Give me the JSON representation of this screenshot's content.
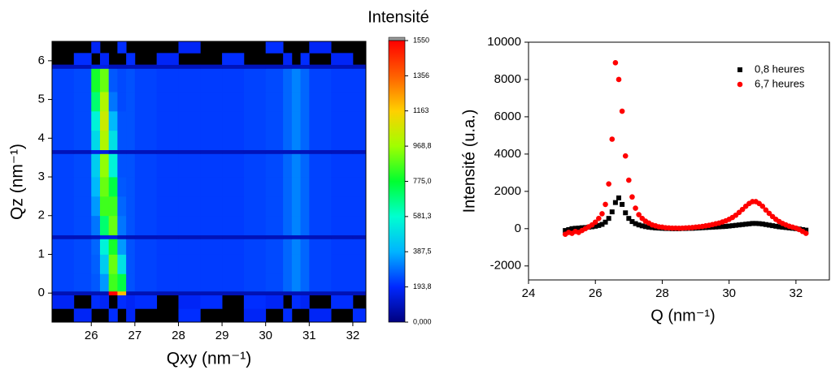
{
  "chart_data": [
    {
      "type": "heatmap",
      "xlabel": "Qxy (nm⁻¹)",
      "ylabel": "Qz (nm⁻¹)",
      "colorbar_title": "Intensité",
      "xlim": [
        25.1,
        32.3
      ],
      "ylim": [
        -0.75,
        6.5
      ],
      "xticks": [
        26,
        27,
        28,
        29,
        30,
        31,
        32
      ],
      "yticks": [
        0,
        1,
        2,
        3,
        4,
        5,
        6
      ],
      "clim": [
        0,
        1550
      ],
      "cticks": [
        {
          "value": 0,
          "label": "0,000"
        },
        {
          "value": 193.8,
          "label": "193,8"
        },
        {
          "value": 387.5,
          "label": "387,5"
        },
        {
          "value": 581.3,
          "label": "581,3"
        },
        {
          "value": 775.0,
          "label": "775,0"
        },
        {
          "value": 968.8,
          "label": "968,8"
        },
        1163,
        1356,
        1550
      ],
      "colorscale": [
        "#00007f",
        "#0028ff",
        "#00b4ff",
        "#00ffd0",
        "#00ff30",
        "#a0ff00",
        "#ffd000",
        "#ff6000",
        "#ff0000"
      ],
      "x_edges": [
        25.1,
        25.6,
        26.0,
        26.2,
        26.4,
        26.6,
        26.8,
        27.0,
        27.5,
        28.0,
        28.5,
        29.0,
        29.5,
        30.0,
        30.4,
        30.6,
        30.8,
        31.0,
        31.5,
        32.0,
        32.3
      ],
      "y_edges": [
        -0.75,
        -0.4,
        -0.05,
        0.05,
        0.5,
        1.0,
        1.4,
        1.5,
        2.0,
        2.5,
        3.0,
        3.6,
        3.7,
        4.2,
        4.7,
        5.2,
        5.8,
        5.9,
        6.2,
        6.5
      ],
      "z": [
        [
          null,
          180,
          null,
          null,
          200,
          null,
          180,
          null,
          null,
          200,
          null,
          null,
          180,
          null,
          200,
          null,
          null,
          180,
          null,
          200
        ],
        [
          180,
          null,
          200,
          180,
          null,
          200,
          180,
          200,
          null,
          180,
          200,
          null,
          200,
          180,
          null,
          200,
          180,
          null,
          200,
          null
        ],
        [
          80,
          80,
          80,
          80,
          1550,
          1200,
          80,
          80,
          80,
          80,
          80,
          80,
          80,
          80,
          80,
          80,
          80,
          80,
          80,
          80
        ],
        [
          230,
          240,
          260,
          350,
          850,
          750,
          250,
          230,
          220,
          220,
          220,
          220,
          230,
          240,
          280,
          320,
          280,
          230,
          220,
          220
        ],
        [
          230,
          240,
          270,
          450,
          900,
          500,
          250,
          230,
          220,
          220,
          220,
          220,
          230,
          240,
          280,
          320,
          280,
          230,
          220,
          220
        ],
        [
          230,
          240,
          280,
          550,
          800,
          350,
          250,
          230,
          220,
          220,
          220,
          220,
          230,
          240,
          280,
          320,
          280,
          230,
          220,
          220
        ],
        [
          90,
          90,
          100,
          150,
          150,
          100,
          90,
          90,
          90,
          90,
          90,
          90,
          90,
          90,
          90,
          90,
          90,
          90,
          90,
          90
        ],
        [
          230,
          240,
          300,
          700,
          900,
          300,
          250,
          230,
          220,
          220,
          220,
          220,
          230,
          240,
          280,
          320,
          280,
          230,
          220,
          220
        ],
        [
          230,
          240,
          350,
          850,
          850,
          280,
          250,
          230,
          220,
          220,
          220,
          220,
          230,
          240,
          280,
          320,
          280,
          230,
          220,
          220
        ],
        [
          230,
          240,
          400,
          900,
          750,
          260,
          250,
          230,
          220,
          220,
          220,
          220,
          230,
          240,
          280,
          320,
          280,
          230,
          220,
          220
        ],
        [
          230,
          240,
          450,
          950,
          550,
          250,
          250,
          230,
          220,
          220,
          220,
          220,
          230,
          240,
          280,
          320,
          280,
          230,
          220,
          220
        ],
        [
          90,
          90,
          150,
          150,
          100,
          90,
          90,
          90,
          90,
          90,
          90,
          90,
          90,
          90,
          90,
          90,
          90,
          90,
          90,
          90
        ],
        [
          230,
          240,
          480,
          1000,
          500,
          250,
          250,
          230,
          220,
          220,
          220,
          220,
          230,
          240,
          280,
          320,
          280,
          230,
          220,
          220
        ],
        [
          230,
          240,
          550,
          1050,
          400,
          250,
          250,
          230,
          220,
          220,
          220,
          220,
          230,
          240,
          280,
          320,
          280,
          230,
          220,
          220
        ],
        [
          230,
          240,
          700,
          1000,
          300,
          240,
          250,
          230,
          220,
          220,
          220,
          220,
          230,
          240,
          280,
          320,
          280,
          230,
          220,
          220
        ],
        [
          230,
          240,
          800,
          900,
          260,
          240,
          250,
          230,
          220,
          220,
          220,
          220,
          230,
          240,
          280,
          320,
          280,
          230,
          220,
          220
        ],
        [
          90,
          90,
          150,
          150,
          90,
          90,
          90,
          90,
          90,
          90,
          90,
          90,
          90,
          90,
          90,
          90,
          90,
          90,
          90,
          90
        ],
        [
          null,
          200,
          null,
          180,
          null,
          null,
          200,
          null,
          180,
          null,
          null,
          200,
          null,
          null,
          180,
          null,
          200,
          null,
          180,
          null
        ],
        [
          null,
          null,
          180,
          null,
          null,
          200,
          null,
          null,
          null,
          180,
          null,
          null,
          null,
          200,
          null,
          null,
          null,
          180,
          null,
          null
        ]
      ]
    },
    {
      "type": "scatter",
      "xlabel": "Q (nm⁻¹)",
      "ylabel": "Intensité (u.a.)",
      "xlim": [
        24,
        33
      ],
      "ylim": [
        -2750,
        10000
      ],
      "xticks": [
        24,
        26,
        28,
        30,
        32
      ],
      "yticks": [
        -2000,
        0,
        2000,
        4000,
        6000,
        8000,
        10000
      ],
      "legend": "upper right",
      "x": [
        25.1,
        25.2,
        25.3,
        25.4,
        25.5,
        25.6,
        25.7,
        25.8,
        25.9,
        26.0,
        26.1,
        26.2,
        26.3,
        26.4,
        26.5,
        26.6,
        26.7,
        26.8,
        26.9,
        27.0,
        27.1,
        27.2,
        27.3,
        27.4,
        27.5,
        27.6,
        27.7,
        27.8,
        27.9,
        28.0,
        28.1,
        28.2,
        28.3,
        28.4,
        28.5,
        28.6,
        28.7,
        28.8,
        28.9,
        29.0,
        29.1,
        29.2,
        29.3,
        29.4,
        29.5,
        29.6,
        29.7,
        29.8,
        29.9,
        30.0,
        30.1,
        30.2,
        30.3,
        30.4,
        30.5,
        30.6,
        30.7,
        30.8,
        30.9,
        31.0,
        31.1,
        31.2,
        31.3,
        31.4,
        31.5,
        31.6,
        31.7,
        31.8,
        31.9,
        32.0,
        32.1,
        32.2,
        32.3
      ],
      "series": [
        {
          "name": "0,8 heures",
          "color": "#000000",
          "marker": "square",
          "values": [
            -100,
            -50,
            0,
            20,
            30,
            50,
            60,
            80,
            100,
            130,
            170,
            230,
            350,
            550,
            900,
            1400,
            1650,
            1300,
            850,
            550,
            380,
            270,
            200,
            150,
            110,
            80,
            60,
            40,
            30,
            20,
            10,
            10,
            0,
            0,
            0,
            10,
            10,
            20,
            20,
            30,
            40,
            50,
            60,
            70,
            80,
            90,
            100,
            110,
            120,
            140,
            160,
            180,
            200,
            220,
            240,
            260,
            280,
            280,
            270,
            250,
            220,
            190,
            160,
            130,
            100,
            80,
            60,
            40,
            20,
            0,
            -20,
            -50,
            -80
          ]
        },
        {
          "name": "6,7 heures",
          "color": "#ff0000",
          "marker": "circle",
          "values": [
            -300,
            -200,
            -250,
            -150,
            -200,
            -100,
            0,
            100,
            200,
            350,
            550,
            800,
            1300,
            2400,
            4800,
            8900,
            8000,
            6300,
            3900,
            2600,
            1700,
            1100,
            750,
            550,
            400,
            300,
            200,
            150,
            100,
            80,
            50,
            40,
            30,
            30,
            20,
            30,
            40,
            50,
            60,
            80,
            100,
            120,
            150,
            180,
            220,
            260,
            300,
            360,
            420,
            500,
            600,
            720,
            870,
            1030,
            1200,
            1350,
            1450,
            1450,
            1350,
            1200,
            1000,
            820,
            650,
            500,
            380,
            280,
            200,
            130,
            80,
            30,
            -50,
            -150,
            -250
          ]
        }
      ]
    }
  ]
}
